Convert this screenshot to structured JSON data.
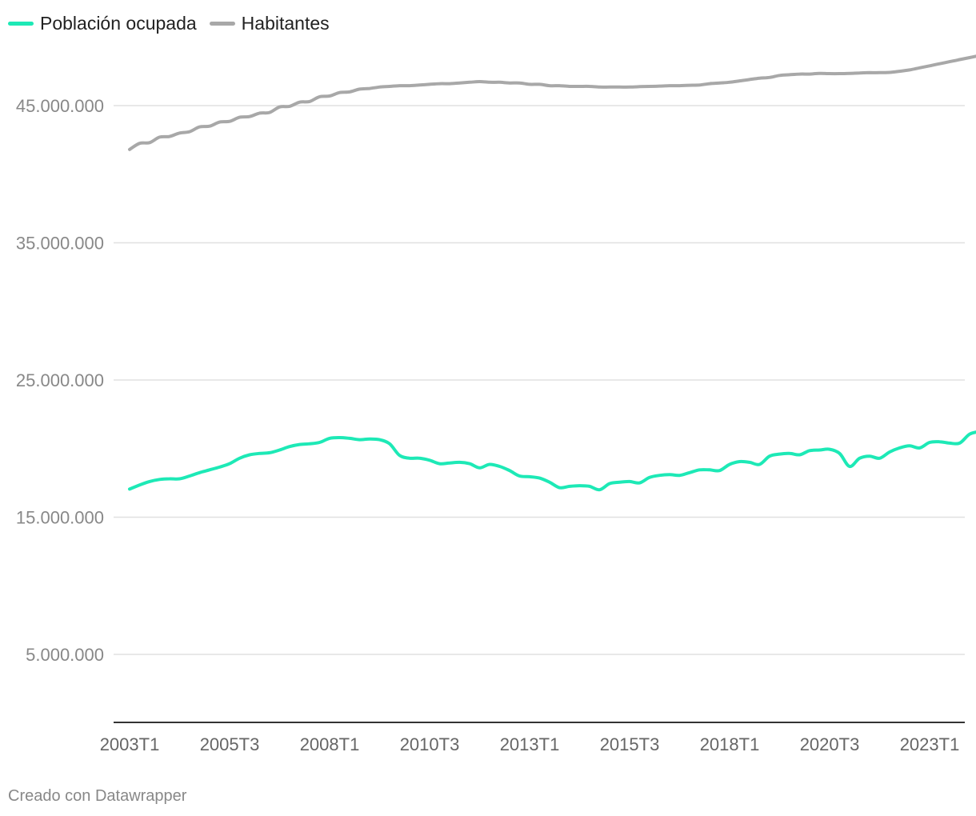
{
  "chart_data": {
    "type": "line",
    "title": "",
    "xlabel": "",
    "ylabel": "",
    "ylim": [
      0,
      48000000
    ],
    "y_ticks": [
      5000000,
      15000000,
      25000000,
      35000000,
      45000000
    ],
    "y_tick_labels": [
      "5.000.000",
      "15.000.000",
      "25.000.000",
      "35.000.000",
      "45.000.000"
    ],
    "x_ticks": [
      "2003T1",
      "2005T3",
      "2008T1",
      "2010T3",
      "2013T1",
      "2015T3",
      "2018T1",
      "2020T3",
      "2023T1"
    ],
    "x_start": "2003T1",
    "x_end": "2024T2",
    "legend": [
      "Población ocupada",
      "Habitantes"
    ],
    "series": [
      {
        "name": "Población ocupada",
        "color": "#1de9b6",
        "values": [
          17050000,
          17350000,
          17600000,
          17750000,
          17800000,
          17800000,
          18000000,
          18250000,
          18450000,
          18650000,
          18900000,
          19300000,
          19550000,
          19650000,
          19700000,
          19900000,
          20150000,
          20300000,
          20350000,
          20450000,
          20750000,
          20800000,
          20750000,
          20650000,
          20700000,
          20650000,
          20350000,
          19500000,
          19300000,
          19300000,
          19150000,
          18900000,
          18950000,
          19000000,
          18900000,
          18600000,
          18850000,
          18700000,
          18400000,
          18000000,
          17950000,
          17850000,
          17550000,
          17150000,
          17250000,
          17300000,
          17250000,
          17000000,
          17450000,
          17550000,
          17600000,
          17500000,
          17900000,
          18050000,
          18100000,
          18050000,
          18250000,
          18450000,
          18450000,
          18400000,
          18850000,
          19050000,
          19000000,
          18850000,
          19450000,
          19600000,
          19650000,
          19550000,
          19850000,
          19900000,
          19950000,
          19650000,
          18700000,
          19300000,
          19450000,
          19300000,
          19750000,
          20050000,
          20200000,
          20050000,
          20450000,
          20500000,
          20400000,
          20400000,
          21050000,
          21250000
        ]
      },
      {
        "name": "Habitantes",
        "color": "#a8a8a8",
        "values": [
          41800000,
          42250000,
          42300000,
          42700000,
          42750000,
          43000000,
          43100000,
          43450000,
          43500000,
          43800000,
          43850000,
          44150000,
          44200000,
          44450000,
          44500000,
          44900000,
          44950000,
          45250000,
          45300000,
          45650000,
          45700000,
          45950000,
          46000000,
          46200000,
          46250000,
          46350000,
          46400000,
          46450000,
          46450000,
          46500000,
          46550000,
          46600000,
          46600000,
          46650000,
          46700000,
          46750000,
          46700000,
          46700000,
          46650000,
          46650000,
          46550000,
          46550000,
          46450000,
          46450000,
          46400000,
          46400000,
          46400000,
          46350000,
          46350000,
          46350000,
          46350000,
          46380000,
          46400000,
          46420000,
          46450000,
          46450000,
          46480000,
          46500000,
          46600000,
          46650000,
          46700000,
          46800000,
          46900000,
          47000000,
          47050000,
          47200000,
          47250000,
          47300000,
          47300000,
          47350000,
          47330000,
          47330000,
          47350000,
          47380000,
          47400000,
          47400000,
          47420000,
          47500000,
          47600000,
          47750000,
          47900000,
          48050000,
          48200000,
          48350000,
          48500000,
          48650000
        ]
      }
    ]
  },
  "footer": {
    "credit": "Creado con Datawrapper"
  }
}
